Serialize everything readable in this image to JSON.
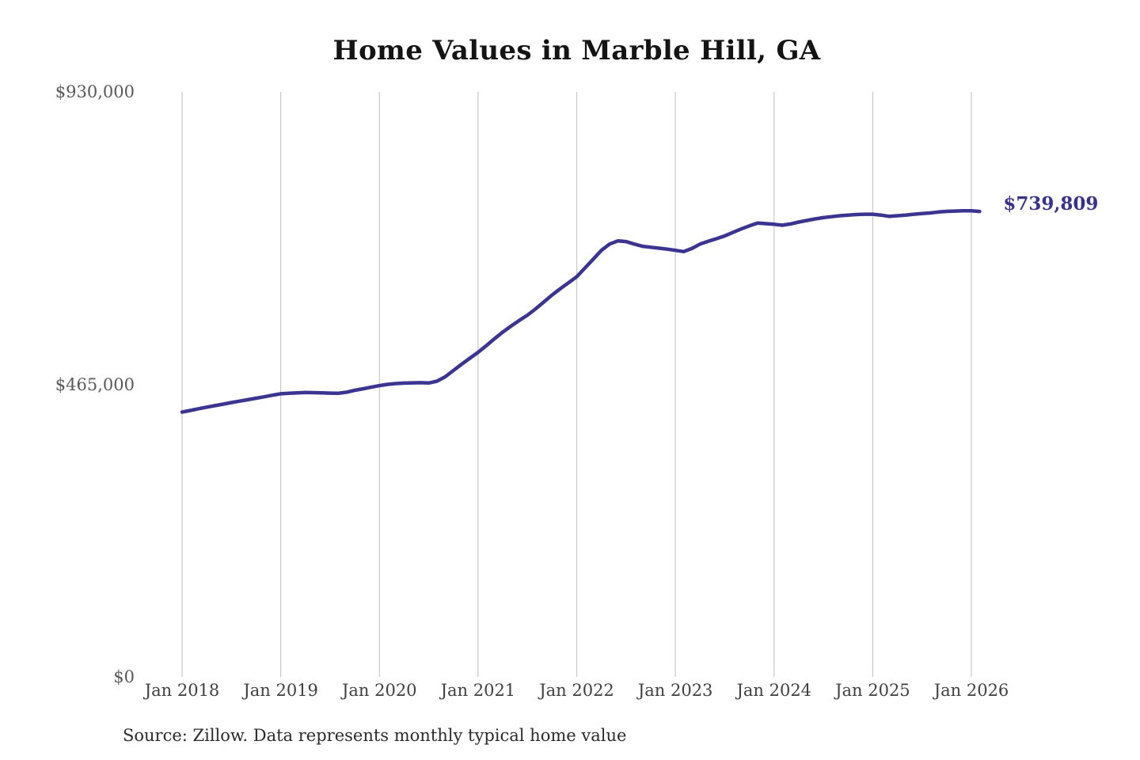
{
  "page": {
    "background_color": "#ffffff"
  },
  "chart": {
    "title": "Home Values in Marble Hill, GA",
    "end_label": "$739,809",
    "source_note": "Source: Zillow. Data represents monthly typical home value",
    "line_color": "#3b3491",
    "end_label_color": "#39328a",
    "gridline_color": "#c8c8c8",
    "title_color": "#141414",
    "y_tick_color": "#595959",
    "x_tick_color": "#404040"
  },
  "chart_data": {
    "type": "line",
    "title": "Home Values in Marble Hill, GA",
    "series_name": "Monthly typical home value",
    "source": "Source: Zillow. Data represents monthly typical home value",
    "end_label": "$739,809",
    "grid": "vertical-only",
    "legend": "none",
    "ylim": [
      0,
      930000
    ],
    "y_ticks": [
      {
        "value": 0,
        "label": "$0"
      },
      {
        "value": 465000,
        "label": "$465,000"
      },
      {
        "value": 930000,
        "label": "$930,000"
      }
    ],
    "x_ticks": [
      {
        "month": "2018-01",
        "label": "Jan 2018"
      },
      {
        "month": "2019-01",
        "label": "Jan 2019"
      },
      {
        "month": "2020-01",
        "label": "Jan 2020"
      },
      {
        "month": "2021-01",
        "label": "Jan 2021"
      },
      {
        "month": "2022-01",
        "label": "Jan 2022"
      },
      {
        "month": "2023-01",
        "label": "Jan 2023"
      },
      {
        "month": "2024-01",
        "label": "Jan 2024"
      },
      {
        "month": "2025-01",
        "label": "Jan 2025"
      },
      {
        "month": "2026-01",
        "label": "Jan 2026"
      }
    ],
    "x": [
      "2018-01",
      "2018-02",
      "2018-03",
      "2018-04",
      "2018-05",
      "2018-06",
      "2018-07",
      "2018-08",
      "2018-09",
      "2018-10",
      "2018-11",
      "2018-12",
      "2019-01",
      "2019-02",
      "2019-03",
      "2019-04",
      "2019-05",
      "2019-06",
      "2019-07",
      "2019-08",
      "2019-09",
      "2019-10",
      "2019-11",
      "2019-12",
      "2020-01",
      "2020-02",
      "2020-03",
      "2020-04",
      "2020-05",
      "2020-06",
      "2020-07",
      "2020-08",
      "2020-09",
      "2020-10",
      "2020-11",
      "2020-12",
      "2021-01",
      "2021-02",
      "2021-03",
      "2021-04",
      "2021-05",
      "2021-06",
      "2021-07",
      "2021-08",
      "2021-09",
      "2021-10",
      "2021-11",
      "2021-12",
      "2022-01",
      "2022-02",
      "2022-03",
      "2022-04",
      "2022-05",
      "2022-06",
      "2022-07",
      "2022-08",
      "2022-09",
      "2022-10",
      "2022-11",
      "2022-12",
      "2023-01",
      "2023-02",
      "2023-03",
      "2023-04",
      "2023-05",
      "2023-06",
      "2023-07",
      "2023-08",
      "2023-09",
      "2023-10",
      "2023-11",
      "2023-12",
      "2024-01",
      "2024-02",
      "2024-03",
      "2024-04",
      "2024-05",
      "2024-06",
      "2024-07",
      "2024-08",
      "2024-09",
      "2024-10",
      "2024-11",
      "2024-12",
      "2025-01",
      "2025-02",
      "2025-03",
      "2025-04",
      "2025-05",
      "2025-06",
      "2025-07",
      "2025-08",
      "2025-09",
      "2025-10",
      "2025-11",
      "2025-12",
      "2026-01",
      "2026-02"
    ],
    "values": [
      421000,
      423500,
      426200,
      428800,
      431200,
      433600,
      436000,
      438300,
      440600,
      443000,
      445300,
      447700,
      450000,
      450800,
      451500,
      452000,
      451800,
      451400,
      451000,
      450800,
      452500,
      455500,
      458000,
      460500,
      463000,
      465000,
      466200,
      467000,
      467400,
      467600,
      467200,
      470000,
      477000,
      487000,
      497000,
      506500,
      516000,
      526500,
      537500,
      548000,
      557500,
      566500,
      575000,
      585000,
      596000,
      607000,
      617000,
      626500,
      636000,
      650000,
      664000,
      678000,
      688000,
      693000,
      692000,
      688000,
      684500,
      683000,
      681500,
      680000,
      678000,
      676000,
      681000,
      688000,
      692500,
      696500,
      701000,
      706500,
      712000,
      717000,
      721500,
      720500,
      719500,
      718000,
      720000,
      723000,
      725500,
      728000,
      730000,
      731500,
      733000,
      734000,
      735000,
      735500,
      735500,
      734000,
      732000,
      733000,
      734000,
      735500,
      736500,
      737500,
      739000,
      740000,
      740500,
      741000,
      741000,
      739809
    ]
  }
}
